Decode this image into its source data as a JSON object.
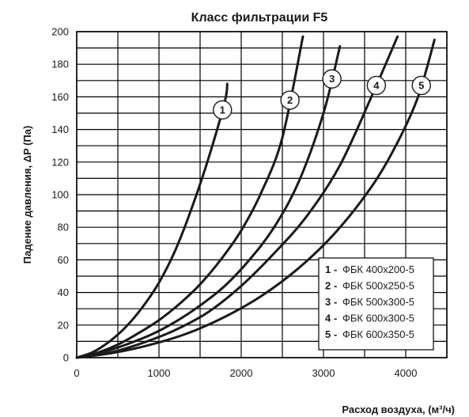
{
  "chart_data": {
    "type": "line",
    "title": "Класс фильтрации F5",
    "xlabel": "Расход воздуха, (м³/ч)",
    "ylabel": "Падение давления, ΔP (Па)",
    "xlim": [
      0,
      4500
    ],
    "ylim": [
      0,
      200
    ],
    "x_ticks": [
      "0",
      "1000",
      "2000",
      "3000",
      "4000"
    ],
    "y_ticks": [
      "0",
      "20",
      "40",
      "60",
      "80",
      "100",
      "120",
      "140",
      "160",
      "180",
      "200"
    ],
    "grid": true,
    "legend_position": "bottom-right",
    "series": [
      {
        "name": "ФБК 400x200-5",
        "marker": "1",
        "x": [
          0,
          200,
          400,
          600,
          800,
          1000,
          1200,
          1400,
          1600,
          1800,
          1830
        ],
        "y": [
          0,
          3.5,
          10,
          19,
          31,
          46,
          66,
          92,
          122,
          157,
          168
        ]
      },
      {
        "name": "ФБК 500x250-5",
        "marker": "2",
        "x": [
          0,
          250,
          500,
          750,
          1000,
          1250,
          1500,
          1750,
          2000,
          2250,
          2500,
          2750
        ],
        "y": [
          0,
          3,
          8,
          15,
          23,
          33,
          45,
          60,
          78,
          102,
          135,
          197
        ]
      },
      {
        "name": "ФБК 500x300-5",
        "marker": "3",
        "x": [
          0,
          300,
          600,
          900,
          1200,
          1500,
          1800,
          2100,
          2400,
          2700,
          3000,
          3200
        ],
        "y": [
          0,
          3,
          8,
          14,
          22,
          32,
          44,
          60,
          80,
          108,
          150,
          191
        ]
      },
      {
        "name": "ФБК 600x300-5",
        "marker": "4",
        "x": [
          0,
          400,
          800,
          1200,
          1600,
          2000,
          2400,
          2800,
          3200,
          3600,
          3900
        ],
        "y": [
          0,
          3,
          9,
          17,
          28,
          44,
          64,
          87,
          118,
          162,
          197
        ]
      },
      {
        "name": "ФБК 600x350-5",
        "marker": "5",
        "x": [
          0,
          450,
          900,
          1350,
          1800,
          2250,
          2700,
          3150,
          3600,
          3900,
          4150,
          4350
        ],
        "y": [
          0,
          3,
          8,
          15,
          25,
          38,
          55,
          77,
          106,
          132,
          160,
          195
        ]
      }
    ]
  },
  "legend": {
    "items": [
      {
        "num": "1",
        "dash": "-",
        "text": "ФБК 400x200-5"
      },
      {
        "num": "2",
        "dash": "-",
        "text": "ФБК 500x250-5"
      },
      {
        "num": "3",
        "dash": "-",
        "text": "ФБК 500x300-5"
      },
      {
        "num": "4",
        "dash": "-",
        "text": "ФБК 600x300-5"
      },
      {
        "num": "5",
        "dash": "-",
        "text": "ФБК 600x350-5"
      }
    ]
  },
  "colors": {
    "line": "#1a1a1a",
    "grid": "#000000",
    "background": "#ffffff"
  }
}
